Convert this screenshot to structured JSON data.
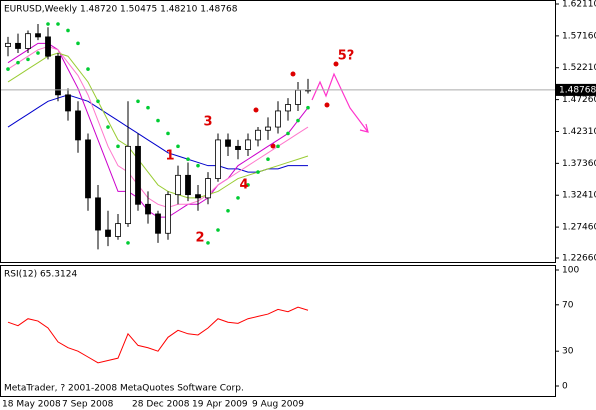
{
  "chart_data": [
    {
      "type": "candlestick",
      "title": "EURUSD,Weekly  1.48720 1.50475 1.48210 1.48768",
      "categories": [
        "18 May 2008",
        null,
        null,
        null,
        null,
        null,
        "7 Sep 2008",
        null,
        null,
        null,
        null,
        null,
        null,
        "28 Dec 2008",
        null,
        null,
        null,
        null,
        null,
        "19 Apr 2009",
        null,
        null,
        null,
        null,
        null,
        "9 Aug 2009",
        null,
        null,
        null,
        null,
        null
      ],
      "open": [
        1.555,
        1.56,
        1.552,
        1.575,
        1.57,
        1.54,
        1.48,
        1.455,
        1.41,
        1.32,
        1.27,
        1.26,
        1.28,
        1.4,
        1.31,
        1.295,
        1.265,
        1.325,
        1.355,
        1.325,
        1.32,
        1.35,
        1.41,
        1.4,
        1.395,
        1.41,
        1.425,
        1.43,
        1.455,
        1.465,
        1.4872
      ],
      "high": [
        1.57,
        1.575,
        1.58,
        1.59,
        1.585,
        1.545,
        1.49,
        1.47,
        1.42,
        1.34,
        1.3,
        1.295,
        1.47,
        1.42,
        1.33,
        1.3,
        1.33,
        1.37,
        1.375,
        1.34,
        1.36,
        1.42,
        1.42,
        1.41,
        1.42,
        1.43,
        1.445,
        1.47,
        1.475,
        1.5,
        1.50475
      ],
      "low": [
        1.54,
        1.545,
        1.545,
        1.565,
        1.535,
        1.47,
        1.44,
        1.39,
        1.3,
        1.24,
        1.245,
        1.255,
        1.275,
        1.3,
        1.28,
        1.25,
        1.255,
        1.31,
        1.315,
        1.3,
        1.31,
        1.345,
        1.385,
        1.38,
        1.385,
        1.4,
        1.41,
        1.42,
        1.44,
        1.455,
        1.4821
      ],
      "close": [
        1.56,
        1.552,
        1.575,
        1.57,
        1.54,
        1.48,
        1.455,
        1.41,
        1.32,
        1.27,
        1.26,
        1.28,
        1.4,
        1.31,
        1.295,
        1.265,
        1.325,
        1.355,
        1.325,
        1.32,
        1.35,
        1.41,
        1.4,
        1.395,
        1.41,
        1.425,
        1.43,
        1.455,
        1.465,
        1.4872,
        1.48768
      ],
      "series": [
        {
          "type": "line",
          "color": "#0000cc",
          "values": [
            1.43,
            1.44,
            1.45,
            1.46,
            1.47,
            1.475,
            1.48,
            1.475,
            1.47,
            1.46,
            1.45,
            1.44,
            1.43,
            1.42,
            1.41,
            1.4,
            1.39,
            1.385,
            1.38,
            1.375,
            1.37,
            1.37,
            1.365,
            1.365,
            1.36,
            1.36,
            1.365,
            1.365,
            1.37,
            1.37,
            1.37
          ]
        },
        {
          "type": "line",
          "color": "#cc00cc",
          "values": [
            1.53,
            1.54,
            1.55,
            1.56,
            1.56,
            1.55,
            1.52,
            1.49,
            1.45,
            1.41,
            1.37,
            1.33,
            1.33,
            1.32,
            1.3,
            1.29,
            1.29,
            1.3,
            1.31,
            1.31,
            1.32,
            1.34,
            1.35,
            1.37,
            1.38,
            1.39,
            1.4,
            1.41,
            1.42,
            1.44,
            1.46
          ]
        },
        {
          "type": "line",
          "color": "#ff77cc",
          "values": [
            1.52,
            1.53,
            1.54,
            1.55,
            1.555,
            1.55,
            1.53,
            1.51,
            1.48,
            1.44,
            1.4,
            1.37,
            1.36,
            1.34,
            1.32,
            1.31,
            1.305,
            1.31,
            1.31,
            1.315,
            1.325,
            1.34,
            1.35,
            1.36,
            1.37,
            1.38,
            1.39,
            1.4,
            1.41,
            1.42,
            1.43
          ]
        },
        {
          "type": "line",
          "color": "#99cc33",
          "values": [
            1.5,
            1.51,
            1.52,
            1.53,
            1.54,
            1.545,
            1.54,
            1.52,
            1.5,
            1.47,
            1.44,
            1.41,
            1.4,
            1.38,
            1.36,
            1.34,
            1.33,
            1.325,
            1.32,
            1.32,
            1.325,
            1.33,
            1.34,
            1.35,
            1.355,
            1.36,
            1.365,
            1.37,
            1.375,
            1.38,
            1.385
          ]
        },
        {
          "type": "dots",
          "color": "#00cc33",
          "values": [
            1.52,
            1.53,
            1.535,
            1.545,
            1.59,
            1.59,
            1.58,
            1.56,
            1.52,
            1.47,
            1.43,
            1.4,
            1.25,
            1.47,
            1.46,
            1.44,
            1.42,
            1.4,
            1.38,
            1.37,
            1.25,
            1.27,
            1.3,
            1.32,
            1.34,
            1.36,
            1.38,
            1.4,
            1.42,
            1.44,
            1.46
          ]
        }
      ],
      "last_price": 1.48768,
      "annotations": [
        "1",
        "2",
        "3",
        "4",
        "5?"
      ],
      "ylim": [
        1.2266,
        1.6211
      ],
      "yticks": [
        {
          "value": 1.6211,
          "label": "1.62110"
        },
        {
          "value": 1.5716,
          "label": "1.57160"
        },
        {
          "value": 1.5221,
          "label": "1.52210"
        },
        {
          "value": 1.4726,
          "label": "1.47260"
        },
        {
          "value": 1.4231,
          "label": "1.42310"
        },
        {
          "value": 1.3736,
          "label": "1.37360"
        },
        {
          "value": 1.3241,
          "label": "1.32410"
        },
        {
          "value": 1.2746,
          "label": "1.27460"
        },
        {
          "value": 1.2266,
          "label": "1.22660"
        }
      ]
    },
    {
      "type": "line",
      "title": "RSI(12) 65.3124",
      "footer": "MetaTrader, ? 2001-2008 MetaQuotes Software Corp.",
      "series": [
        {
          "color": "#ff0000",
          "values": [
            55,
            52,
            58,
            56,
            50,
            38,
            33,
            30,
            25,
            20,
            22,
            24,
            45,
            35,
            33,
            30,
            42,
            48,
            45,
            44,
            50,
            58,
            55,
            54,
            58,
            60,
            62,
            66,
            64,
            68,
            65.3124
          ]
        }
      ],
      "ylim": [
        0,
        100
      ],
      "yticks": [
        100,
        70,
        30,
        0
      ]
    }
  ]
}
